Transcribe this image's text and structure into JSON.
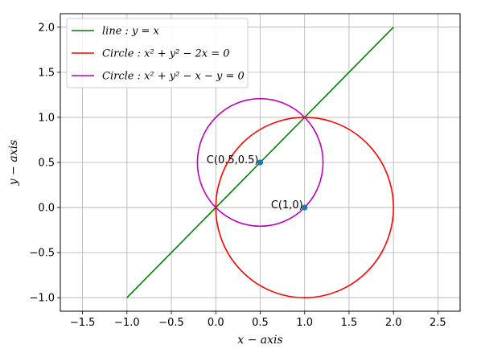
{
  "chart_data": {
    "type": "line",
    "xlabel": "x − axis",
    "ylabel": "y − axis",
    "xlim": [
      -1.75,
      2.75
    ],
    "ylim": [
      -1.15,
      2.15
    ],
    "x_ticks": [
      -1.5,
      -1.0,
      -0.5,
      0.0,
      0.5,
      1.0,
      1.5,
      2.0,
      2.5
    ],
    "y_ticks": [
      -1.0,
      -0.5,
      0.0,
      0.5,
      1.0,
      1.5,
      2.0
    ],
    "x_tick_labels": [
      "−1.5",
      "−1.0",
      "−0.5",
      "0.0",
      "0.5",
      "1.0",
      "1.5",
      "2.0",
      "2.5"
    ],
    "y_tick_labels": [
      "−1.0",
      "−0.5",
      "0.0",
      "0.5",
      "1.0",
      "1.5",
      "2.0"
    ],
    "grid": true,
    "legend_position": "top-left",
    "series": [
      {
        "name": "line : y = x",
        "kind": "line",
        "color": "#008000",
        "x": [
          -1.0,
          2.0
        ],
        "y": [
          -1.0,
          2.0
        ]
      },
      {
        "name": "Circle : x² + y² − 2x = 0",
        "kind": "circle",
        "color": "#ff0000",
        "center": [
          1.0,
          0.0
        ],
        "radius": 1.0
      },
      {
        "name": "Circle : x² + y² − x − y = 0",
        "kind": "circle",
        "color": "#bf00bf",
        "center": [
          0.5,
          0.5
        ],
        "radius": 0.7071
      }
    ],
    "points": [
      {
        "x": 0.5,
        "y": 0.5,
        "color": "#1f77b4",
        "label": "C(0.5,0.5)"
      },
      {
        "x": 1.0,
        "y": 0.0,
        "color": "#1f77b4",
        "label": "C(1,0)"
      }
    ]
  }
}
